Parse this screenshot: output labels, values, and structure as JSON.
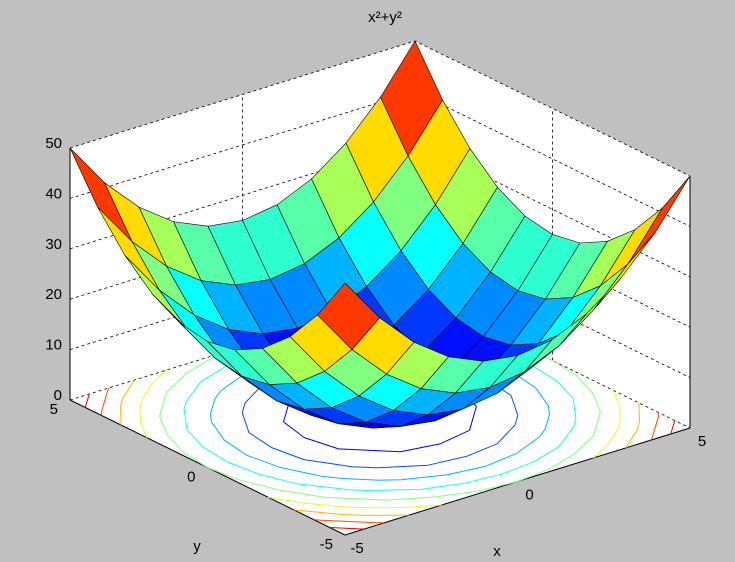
{
  "chart_data": {
    "type": "surface",
    "title": "x²+y²",
    "xlabel": "x",
    "ylabel": "y",
    "x": [
      -5,
      -4,
      -3,
      -2,
      -1,
      0,
      1,
      2,
      3,
      4,
      5
    ],
    "y": [
      -5,
      -4,
      -3,
      -2,
      -1,
      0,
      1,
      2,
      3,
      4,
      5
    ],
    "z": [
      [
        50,
        41,
        34,
        29,
        26,
        25,
        26,
        29,
        34,
        41,
        50
      ],
      [
        41,
        32,
        25,
        20,
        17,
        16,
        17,
        20,
        25,
        32,
        41
      ],
      [
        34,
        25,
        18,
        13,
        10,
        9,
        10,
        13,
        18,
        25,
        34
      ],
      [
        29,
        20,
        13,
        8,
        5,
        4,
        5,
        8,
        13,
        20,
        29
      ],
      [
        26,
        17,
        10,
        5,
        2,
        1,
        2,
        5,
        10,
        17,
        26
      ],
      [
        25,
        16,
        9,
        4,
        1,
        0,
        1,
        4,
        9,
        16,
        25
      ],
      [
        26,
        17,
        10,
        5,
        2,
        1,
        2,
        5,
        10,
        17,
        26
      ],
      [
        29,
        20,
        13,
        8,
        5,
        4,
        5,
        8,
        13,
        20,
        29
      ],
      [
        34,
        25,
        18,
        13,
        10,
        9,
        10,
        13,
        18,
        25,
        34
      ],
      [
        41,
        32,
        25,
        20,
        17,
        16,
        17,
        20,
        25,
        32,
        41
      ],
      [
        50,
        41,
        34,
        29,
        26,
        25,
        26,
        29,
        34,
        41,
        50
      ]
    ],
    "contour_levels": [
      5,
      10,
      15,
      20,
      25,
      30,
      35,
      40,
      45
    ],
    "colormap": "jet",
    "xlim": [
      -5,
      5
    ],
    "ylim": [
      -5,
      5
    ],
    "zlim": [
      0,
      50
    ],
    "xticks": [
      -5,
      0,
      5
    ],
    "yticks": [
      -5,
      0,
      5
    ],
    "zticks": [
      0,
      10,
      20,
      30,
      40,
      50
    ],
    "grid": true
  }
}
